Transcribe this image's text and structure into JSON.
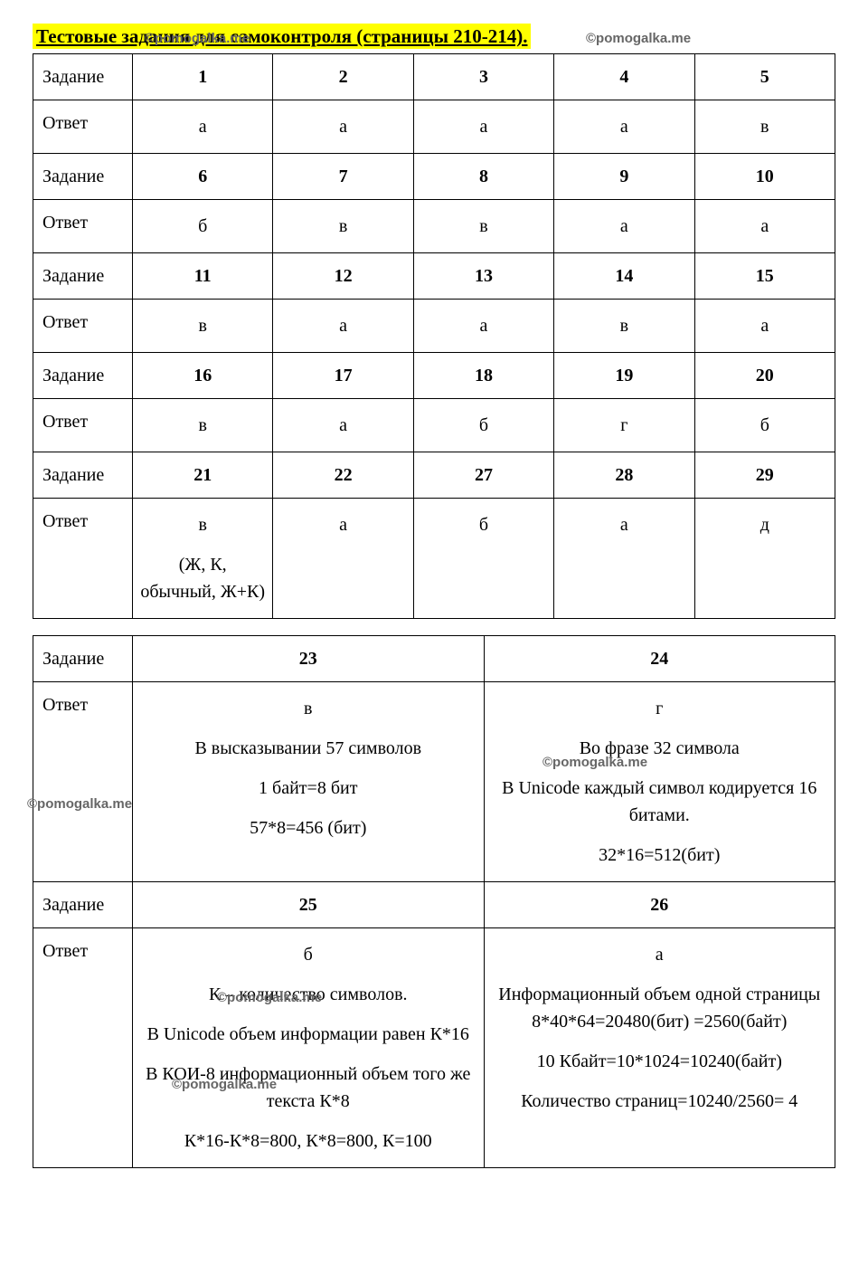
{
  "title": "Тестовые задания для самоконтроля (страницы 210-214).",
  "watermarks": {
    "w1": "©pomogalka.me",
    "w2": "©pomogalka.me",
    "w3": "©pomogalka.me",
    "w4": "©pomogalka.me",
    "w5": "©pomogalka.me",
    "w6": "©pomogalka.me"
  },
  "labels": {
    "task": "Задание",
    "answer": "Ответ"
  },
  "table1": {
    "rows": [
      {
        "nums": [
          "1",
          "2",
          "3",
          "4",
          "5"
        ],
        "answers": [
          "а",
          "а",
          "а",
          "а",
          "в"
        ]
      },
      {
        "nums": [
          "6",
          "7",
          "8",
          "9",
          "10"
        ],
        "answers": [
          "б",
          "в",
          "в",
          "а",
          "а"
        ]
      },
      {
        "nums": [
          "11",
          "12",
          "13",
          "14",
          "15"
        ],
        "answers": [
          "в",
          "а",
          "а",
          "в",
          "а"
        ]
      },
      {
        "nums": [
          "16",
          "17",
          "18",
          "19",
          "20"
        ],
        "answers": [
          "в",
          "а",
          "б",
          "г",
          "б"
        ]
      },
      {
        "nums": [
          "21",
          "22",
          "27",
          "28",
          "29"
        ],
        "answers": [
          "в\n\n(Ж, К, обычный, Ж+К)",
          "а",
          "б",
          "а",
          "д"
        ]
      }
    ]
  },
  "table2": {
    "rows": [
      {
        "nums": [
          "23",
          "24"
        ],
        "answers": [
          "в\n\nВ высказывании 57 символов\n\n1 байт=8 бит\n\n57*8=456 (бит)",
          "г\n\nВо фразе 32 символа\n\nВ Unicode каждый символ кодируется 16 битами.\n\n32*16=512(бит)"
        ]
      },
      {
        "nums": [
          "25",
          "26"
        ],
        "answers": [
          "б\n\nК – количество символов.\n\nВ Unicode объем информации равен К*16\n\nВ КОИ-8 информационный объем того же текста К*8\n\nК*16-К*8=800, К*8=800, К=100",
          "а\n\nИнформационный объем одной страницы 8*40*64=20480(бит) =2560(байт)\n\n10 Кбайт=10*1024=10240(байт)\n\nКоличество страниц=10240/2560= 4"
        ]
      }
    ]
  }
}
